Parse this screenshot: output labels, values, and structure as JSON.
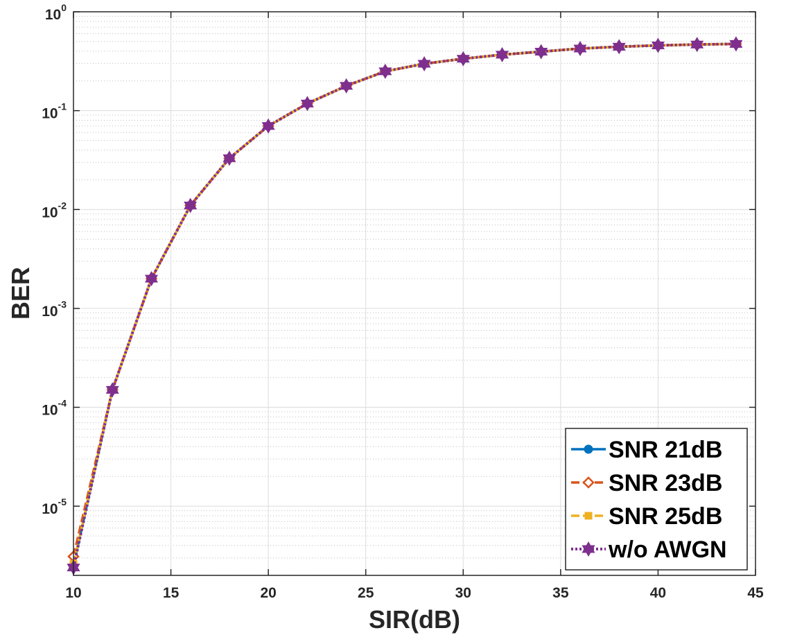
{
  "chart_data": {
    "type": "line",
    "xlabel": "SIR(dB)",
    "ylabel": "BER",
    "xlim": [
      10,
      45
    ],
    "ylim": [
      2e-06,
      1
    ],
    "yscale": "log",
    "grid": true,
    "minor_grid": true,
    "legend_position": "bottom-right",
    "x_ticks": [
      "10",
      "15",
      "20",
      "25",
      "30",
      "35",
      "40",
      "45"
    ],
    "y_ticks": [
      {
        "base": "10",
        "exp": "-5"
      },
      {
        "base": "10",
        "exp": "-4"
      },
      {
        "base": "10",
        "exp": "-3"
      },
      {
        "base": "10",
        "exp": "-2"
      },
      {
        "base": "10",
        "exp": "-1"
      },
      {
        "base": "10",
        "exp": "0"
      }
    ],
    "series": [
      {
        "name": "SNR 21dB",
        "color": "#0072BD",
        "marker": "circle",
        "line_style": "solid",
        "x": [
          10,
          12,
          14,
          16,
          18,
          20,
          22,
          24,
          26,
          28,
          30,
          32,
          34,
          36,
          38,
          40,
          42,
          44
        ],
        "y": [
          2.5e-06,
          0.00015,
          0.002,
          0.011,
          0.033,
          0.07,
          0.118,
          0.178,
          0.25,
          0.298,
          0.335,
          0.368,
          0.395,
          0.425,
          0.443,
          0.457,
          0.467,
          0.473
        ]
      },
      {
        "name": "SNR 23dB",
        "color": "#D95319",
        "marker": "diamond",
        "line_style": "dashed",
        "x": [
          10,
          12,
          14,
          16,
          18,
          20,
          22,
          24,
          26,
          28,
          30,
          32,
          34,
          36,
          38,
          40,
          42,
          44
        ],
        "y": [
          3.1e-06,
          0.00015,
          0.002,
          0.011,
          0.033,
          0.07,
          0.118,
          0.178,
          0.25,
          0.298,
          0.335,
          0.368,
          0.395,
          0.425,
          0.443,
          0.457,
          0.467,
          0.473
        ]
      },
      {
        "name": "SNR 25dB",
        "color": "#EDB120",
        "marker": "square",
        "line_style": "dashed",
        "x": [
          10,
          12,
          14,
          16,
          18,
          20,
          22,
          24,
          26,
          28,
          30,
          32,
          34,
          36,
          38,
          40,
          42,
          44
        ],
        "y": [
          2.6e-06,
          0.00015,
          0.002,
          0.011,
          0.033,
          0.07,
          0.118,
          0.178,
          0.25,
          0.298,
          0.335,
          0.368,
          0.395,
          0.425,
          0.443,
          0.457,
          0.467,
          0.473
        ]
      },
      {
        "name": "w/o AWGN",
        "color": "#7E2F8E",
        "marker": "hexagram",
        "line_style": "dotted",
        "x": [
          10,
          12,
          14,
          16,
          18,
          20,
          22,
          24,
          26,
          28,
          30,
          32,
          34,
          36,
          38,
          40,
          42,
          44
        ],
        "y": [
          2.4e-06,
          0.00015,
          0.002,
          0.011,
          0.033,
          0.07,
          0.118,
          0.178,
          0.25,
          0.298,
          0.335,
          0.368,
          0.395,
          0.425,
          0.443,
          0.457,
          0.467,
          0.473
        ]
      }
    ]
  }
}
